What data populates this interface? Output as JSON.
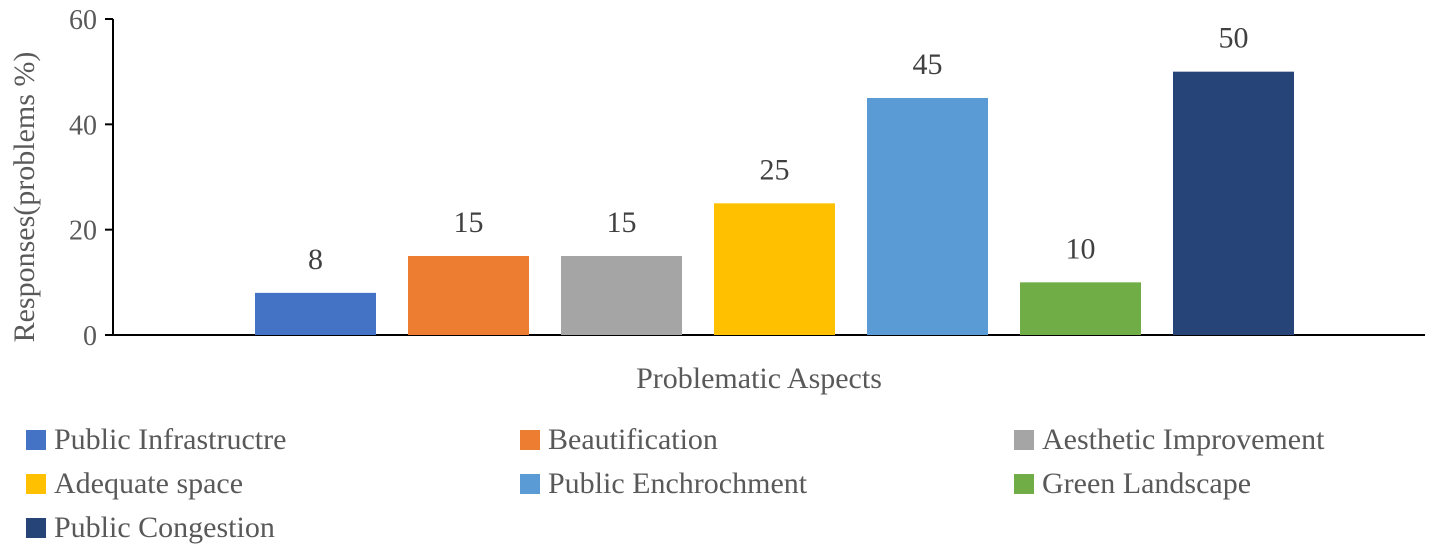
{
  "chart_data": {
    "type": "bar",
    "xlabel": "Problematic Aspects",
    "ylabel": "Responses(problems %)",
    "ylim": [
      0,
      60
    ],
    "yticks": [
      0,
      20,
      40,
      60
    ],
    "grid": false,
    "legend_position": "bottom",
    "series": [
      {
        "name": "Public Infrastructre",
        "value": 8,
        "color": "#4472C4"
      },
      {
        "name": "Beautification",
        "value": 15,
        "color": "#ED7D31"
      },
      {
        "name": "Aesthetic Improvement",
        "value": 15,
        "color": "#A5A5A5"
      },
      {
        "name": "Adequate space",
        "value": 25,
        "color": "#FFC000"
      },
      {
        "name": "Public Enchrochment",
        "value": 45,
        "color": "#5B9BD5"
      },
      {
        "name": "Green Landscape",
        "value": 10,
        "color": "#70AD47"
      },
      {
        "name": "Public Congestion",
        "value": 50,
        "color": "#264478"
      }
    ]
  }
}
